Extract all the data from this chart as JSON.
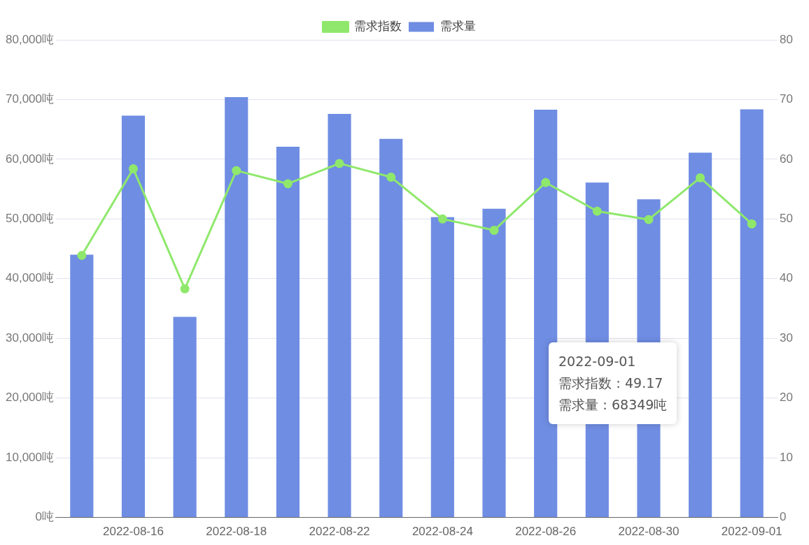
{
  "chart_data": {
    "type": "bar",
    "categories": [
      null,
      "2022-08-16",
      null,
      "2022-08-18",
      null,
      "2022-08-22",
      null,
      "2022-08-24",
      null,
      "2022-08-26",
      null,
      "2022-08-30",
      null,
      "2022-09-01"
    ],
    "series": [
      {
        "name": "需求指数",
        "type": "line",
        "axis": "y2",
        "color": "#8fe86c",
        "values": [
          43.9,
          58.4,
          38.3,
          58.1,
          55.9,
          59.3,
          57.0,
          50.0,
          48.1,
          56.1,
          51.3,
          49.9,
          56.9,
          49.17
        ]
      },
      {
        "name": "需求量",
        "color": "#6f8de3",
        "values": [
          44000,
          67300,
          33600,
          70400,
          62100,
          67600,
          63400,
          50300,
          51700,
          68300,
          56100,
          53300,
          61100,
          68349
        ]
      }
    ],
    "ylim": [
      0,
      80000
    ],
    "yticks": [
      {
        "value": 0,
        "label": "0吨"
      },
      {
        "value": 10000,
        "label": "10,000吨"
      },
      {
        "value": 20000,
        "label": "20,000吨"
      },
      {
        "value": 30000,
        "label": "30,000吨"
      },
      {
        "value": 40000,
        "label": "40,000吨"
      },
      {
        "value": 50000,
        "label": "50,000吨"
      },
      {
        "value": 60000,
        "label": "60,000吨"
      },
      {
        "value": 70000,
        "label": "70,000吨"
      },
      {
        "value": 80000,
        "label": "80,000吨"
      }
    ],
    "y2lim": [
      0,
      80
    ],
    "y2ticks": [
      0,
      10,
      20,
      30,
      40,
      50,
      60,
      70,
      80
    ],
    "grid": "y",
    "legend": "top",
    "marker": "circle",
    "annotations": [
      "2022-09-01",
      "需求指数：49.17",
      "需求量：68349吨"
    ]
  }
}
